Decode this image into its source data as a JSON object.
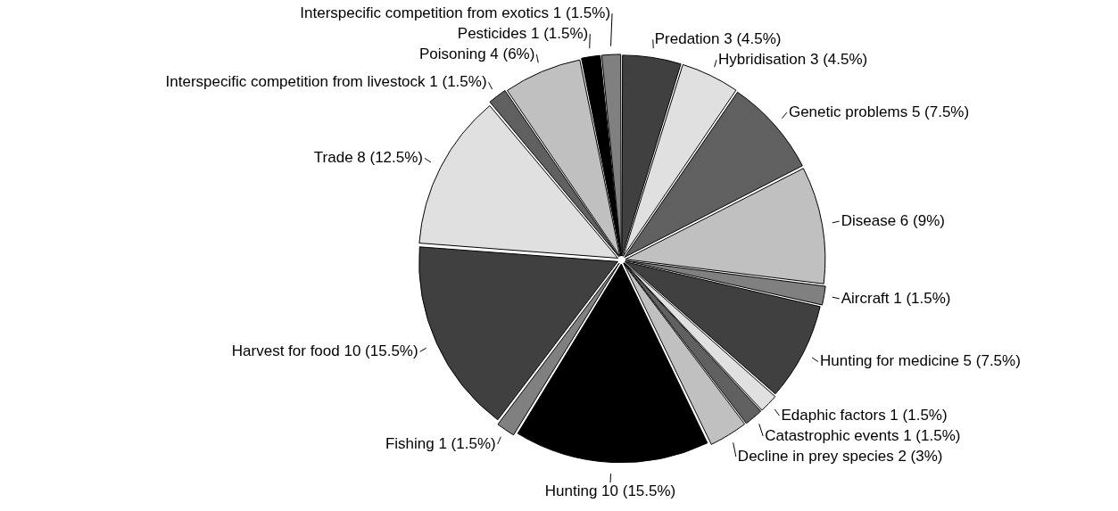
{
  "chart_data": {
    "type": "pie",
    "categories": [
      "Predation",
      "Hybridisation",
      "Genetic problems",
      "Disease",
      "Aircraft",
      "Hunting for medicine",
      "Edaphic factors",
      "Catastrophic events",
      "Decline in prey species",
      "Hunting",
      "Fishing",
      "Harvest for food",
      "Trade",
      "Interspecific competition from livestock",
      "Poisoning",
      "Pesticides",
      "Interspecific competition from exotics"
    ],
    "values": [
      3,
      3,
      5,
      6,
      1,
      5,
      1,
      1,
      2,
      10,
      1,
      10,
      8,
      1,
      4,
      1,
      1
    ],
    "value_labels": [
      "3 (4.5%)",
      "3 (4.5%)",
      "5 (7.5%)",
      "6 (9%)",
      "1 (1.5%)",
      "5 (7.5%)",
      "1 (1.5%)",
      "1 (1.5%)",
      "2 (3%)",
      "10 (15.5%)",
      "1 (1.5%)",
      "10 (15.5%)",
      "8 (12.5%)",
      "1 (1.5%)",
      "4 (6%)",
      "1 (1.5%)",
      "1 (1.5%)"
    ],
    "colors": [
      "#404040",
      "#e0e0e0",
      "#606060",
      "#c0c0c0",
      "#808080",
      "#404040",
      "#e0e0e0",
      "#606060",
      "#c0c0c0",
      "#000000",
      "#808080",
      "#404040",
      "#e0e0e0",
      "#606060",
      "#c0c0c0",
      "#000000",
      "#808080"
    ],
    "legend": false
  }
}
